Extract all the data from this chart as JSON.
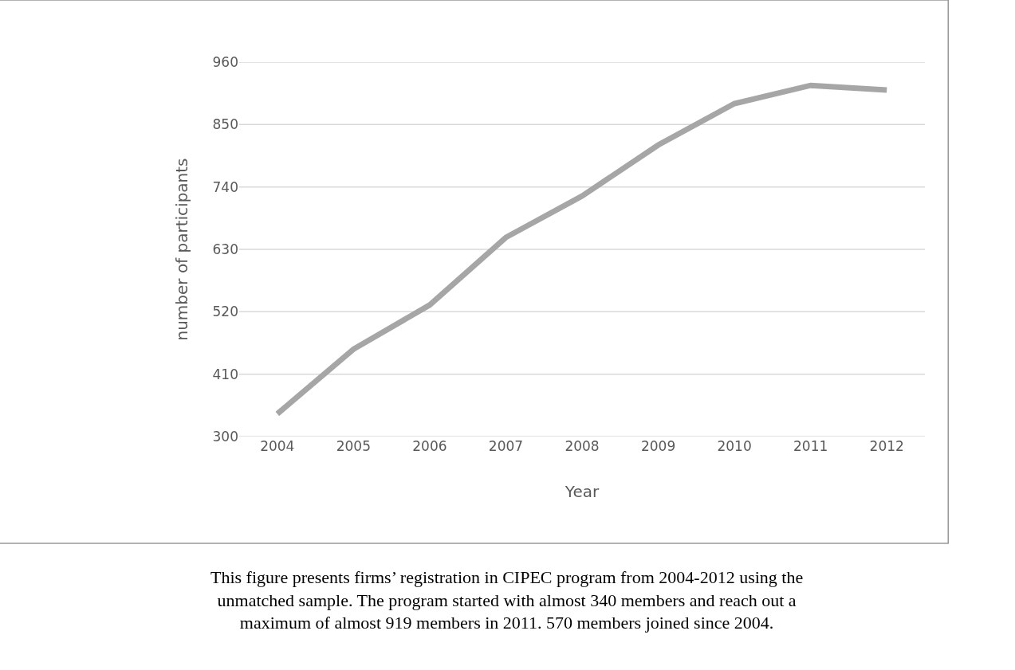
{
  "chart_data": {
    "type": "line",
    "xlabel": "Year",
    "ylabel": "number of participants",
    "categories": [
      "2004",
      "2005",
      "2006",
      "2007",
      "2008",
      "2009",
      "2010",
      "2011",
      "2012"
    ],
    "series": [
      {
        "color": "#a6a6a6",
        "values": [
          340,
          454,
          532,
          651,
          724,
          814,
          887,
          919,
          911
        ]
      }
    ],
    "ylim": [
      300,
      960
    ],
    "yticks": [
      300,
      410,
      520,
      630,
      740,
      850,
      960
    ],
    "grid": "y",
    "marker": "none",
    "line_style": "solid",
    "annotations": [
      "This figure presents firms’ registration in CIPEC program from 2004-2012 using the unmatched sample. The program started with almost 340 members and reach out a maximum of almost 919 members in 2011. 570 members joined since 2004."
    ]
  }
}
